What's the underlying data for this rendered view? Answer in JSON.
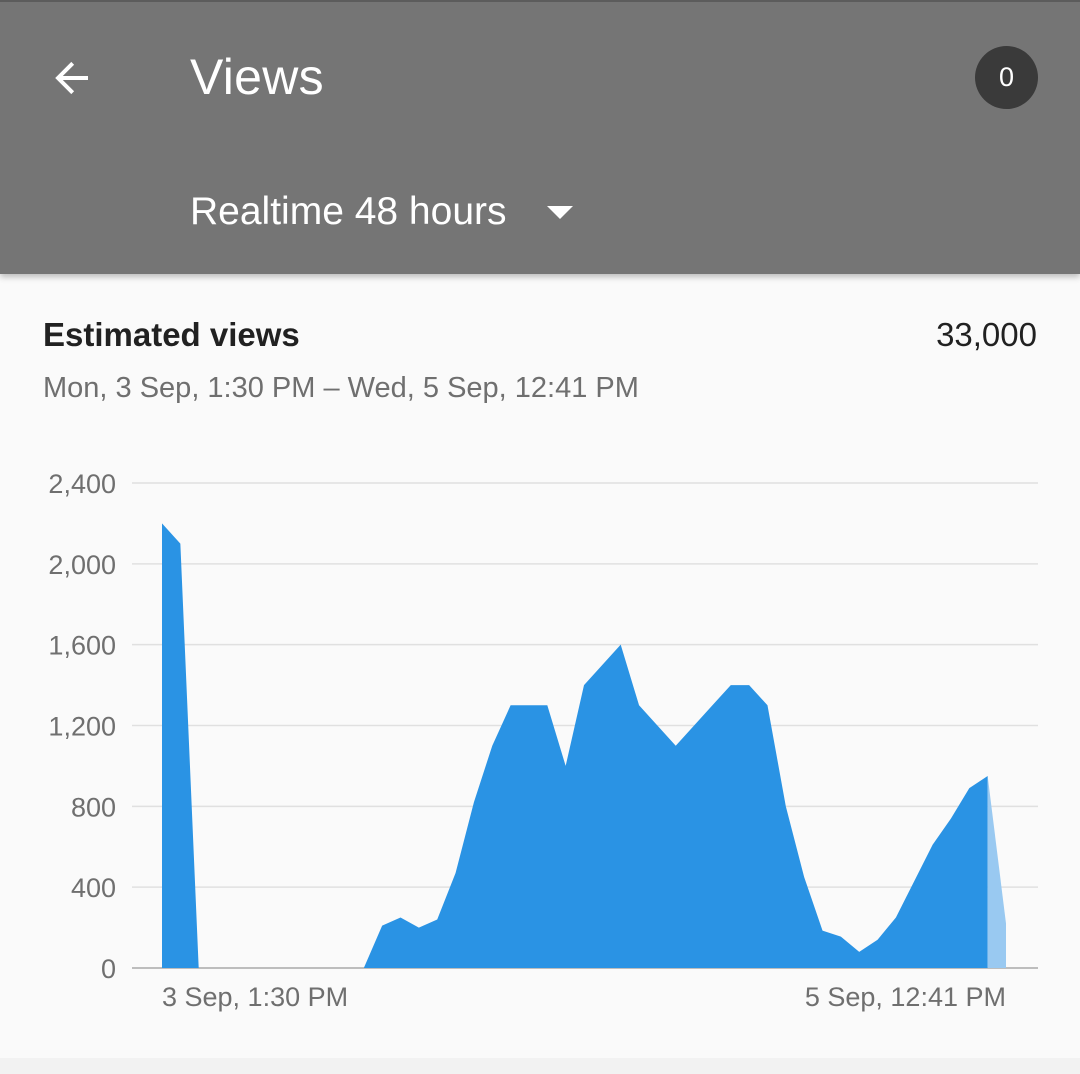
{
  "header": {
    "back_icon": "arrow-back-icon",
    "title": "Views",
    "notification_count": "0",
    "range_select": {
      "selected": "Realtime 48 hours",
      "caret_icon": "dropdown-caret-icon"
    },
    "background_color": "#757575"
  },
  "card": {
    "metric_label": "Estimated views",
    "metric_total": "33,000",
    "date_range": "Mon, 3 Sep, 1:30 PM – Wed, 5 Sep, 12:41 PM"
  },
  "chart_data": {
    "type": "area",
    "title": "",
    "xlabel": "",
    "ylabel": "",
    "ylim": [
      0,
      2400
    ],
    "yticks": [
      "0",
      "400",
      "800",
      "1,200",
      "1,600",
      "2,000",
      "2,400"
    ],
    "ytick_values": [
      0,
      400,
      800,
      1200,
      1600,
      2000,
      2400
    ],
    "xtick_labels": [
      "3 Sep, 1:30 PM",
      "5 Sep, 12:41 PM"
    ],
    "grid": true,
    "colors": {
      "area": "#2a93e4",
      "partial_area": "#99c9f1",
      "grid": "#e0e0e0",
      "axis": "#bdbdbd"
    },
    "series": [
      {
        "values": [
          2200,
          2100,
          0,
          0,
          0,
          0,
          0,
          0,
          0,
          0,
          0,
          0,
          210,
          250,
          200,
          240,
          470,
          820,
          1100,
          1300,
          1300,
          1300,
          1000,
          1400,
          1500,
          1600,
          1300,
          1200,
          1100,
          1200,
          1300,
          1400,
          1400,
          1300,
          800,
          450,
          185,
          155,
          80,
          140,
          250,
          430,
          610,
          740,
          890,
          950,
          220
        ]
      }
    ],
    "partial_last_interval": true
  }
}
